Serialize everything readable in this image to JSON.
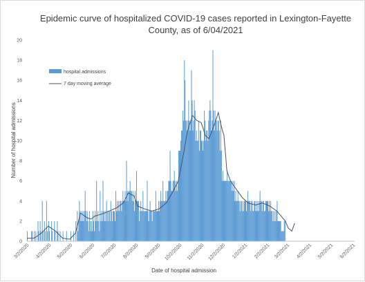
{
  "chart_data": {
    "type": "bar",
    "title_lines": [
      "Epidemic curve of hospitalized COVID-19 cases reported in Lexington-Fayette",
      "County, as of 6/04/2021"
    ],
    "xlabel": "Date of hospital admission",
    "ylabel": "Number of hospital admissions",
    "ylim": [
      0,
      20
    ],
    "yticks": [
      "0",
      "2",
      "4",
      "6",
      "8",
      "10",
      "12",
      "14",
      "16",
      "18",
      "20"
    ],
    "xlim": [
      "2020-03-02",
      "2021-06-04"
    ],
    "xticks": [
      {
        "date": "2020-03-02",
        "label": "3/2/2020"
      },
      {
        "date": "2020-04-02",
        "label": "4/2/2020"
      },
      {
        "date": "2020-05-02",
        "label": "5/2/2020"
      },
      {
        "date": "2020-06-02",
        "label": "6/2/2020"
      },
      {
        "date": "2020-07-02",
        "label": "7/2/2020"
      },
      {
        "date": "2020-08-02",
        "label": "8/2/2020"
      },
      {
        "date": "2020-09-02",
        "label": "9/2/2020"
      },
      {
        "date": "2020-10-02",
        "label": "10/2/2020"
      },
      {
        "date": "2020-11-02",
        "label": "11/2/2020"
      },
      {
        "date": "2020-12-02",
        "label": "12/2/2020"
      },
      {
        "date": "2021-01-02",
        "label": "1/2/2021"
      },
      {
        "date": "2021-02-02",
        "label": "2/2/2021"
      },
      {
        "date": "2021-03-02",
        "label": "3/2/2021"
      },
      {
        "date": "2021-04-02",
        "label": "4/2/2021"
      },
      {
        "date": "2021-05-02",
        "label": "5/2/2021"
      },
      {
        "date": "2021-06-02",
        "label": "6/2/2021"
      }
    ],
    "legend": {
      "position": "upper-left",
      "bar_label": "hospital admissions",
      "line_label": "7 day moving average"
    },
    "grid": false,
    "colors": {
      "bar": "#5b9bd5",
      "line": "#44546a"
    },
    "series": [
      {
        "name": "hospital admissions",
        "type": "bar",
        "start_date": "2020-03-02",
        "values": [
          1,
          0,
          0,
          0,
          0,
          0,
          1,
          1,
          0,
          0,
          1,
          0,
          1,
          0,
          0,
          2,
          1,
          0,
          2,
          1,
          0,
          4,
          1,
          0,
          2,
          1,
          0,
          4,
          1,
          0,
          2,
          1,
          0,
          0,
          2,
          1,
          0,
          0,
          2,
          1,
          0,
          0,
          2,
          1,
          0,
          0,
          1,
          0,
          0,
          0,
          1,
          0,
          0,
          0,
          0,
          1,
          0,
          0,
          0,
          0,
          0,
          1,
          0,
          0,
          0,
          1,
          0,
          0,
          2,
          0,
          3,
          1,
          2,
          4,
          3,
          2,
          3,
          2,
          3,
          2,
          3,
          5,
          3,
          2,
          3,
          2,
          1,
          3,
          2,
          1,
          2,
          1,
          3,
          2,
          1,
          3,
          2,
          6,
          2,
          3,
          2,
          1,
          5,
          2,
          3,
          2,
          6,
          3,
          2,
          3,
          2,
          4,
          3,
          2,
          3,
          3,
          2,
          4,
          3,
          2,
          3,
          3,
          3,
          2,
          5,
          3,
          4,
          3,
          4,
          3,
          4,
          4,
          3,
          4,
          5,
          4,
          4,
          5,
          4,
          8,
          5,
          4,
          5,
          5,
          6,
          5,
          5,
          4,
          5,
          4,
          3,
          5,
          4,
          7,
          4,
          4,
          4,
          2,
          3,
          4,
          3,
          3,
          5,
          3,
          3,
          3,
          3,
          3,
          6,
          3,
          2,
          3,
          4,
          3,
          3,
          2,
          3,
          3,
          3,
          3,
          5,
          3,
          3,
          3,
          4,
          3,
          4,
          5,
          4,
          4,
          6,
          4,
          4,
          4,
          5,
          4,
          5,
          5,
          6,
          6,
          9,
          6,
          5,
          5,
          6,
          6,
          7,
          6,
          5,
          6,
          5,
          6,
          9,
          9,
          9,
          10,
          11,
          11,
          13,
          12,
          18,
          16,
          12,
          12,
          11,
          12,
          14,
          12,
          11,
          12,
          17,
          14,
          11,
          12,
          14,
          13,
          10,
          11,
          10,
          10,
          12,
          9,
          11,
          11,
          10,
          10,
          9,
          10,
          13,
          12,
          10,
          11,
          11,
          10,
          12,
          13,
          14,
          13,
          11,
          12,
          19,
          13,
          11,
          13,
          12,
          12,
          11,
          12,
          12,
          11,
          9,
          12,
          9,
          6,
          7,
          6,
          6,
          6,
          6,
          6,
          7,
          6,
          6,
          6,
          6,
          6,
          6,
          5,
          6,
          5,
          6,
          4,
          5,
          4,
          4,
          5,
          4,
          4,
          3,
          4,
          4,
          3,
          4,
          3,
          4,
          4,
          4,
          3,
          4,
          5,
          4,
          4,
          4,
          3,
          4,
          4,
          3,
          3,
          4,
          4,
          3,
          4,
          3,
          4,
          3,
          4,
          5,
          4,
          4,
          3,
          4,
          4,
          3,
          3,
          4,
          4,
          4,
          4,
          3,
          4,
          3,
          4,
          3,
          3,
          2,
          3,
          2,
          3,
          2,
          3,
          4,
          2,
          2,
          2,
          2,
          2,
          1,
          1,
          1,
          1,
          2,
          2
        ]
      },
      {
        "name": "7 day moving average",
        "type": "line",
        "start_date": "2020-03-02",
        "points": [
          [
            0,
            0.3
          ],
          [
            10,
            0.3
          ],
          [
            20,
            0.8
          ],
          [
            30,
            1.5
          ],
          [
            40,
            1.0
          ],
          [
            50,
            0.3
          ],
          [
            60,
            0.2
          ],
          [
            68,
            0.8
          ],
          [
            75,
            2.8
          ],
          [
            85,
            2.3
          ],
          [
            90,
            2.2
          ],
          [
            95,
            2.5
          ],
          [
            105,
            2.7
          ],
          [
            115,
            3.0
          ],
          [
            125,
            3.3
          ],
          [
            135,
            3.8
          ],
          [
            142,
            4.8
          ],
          [
            150,
            4.5
          ],
          [
            155,
            3.5
          ],
          [
            165,
            3.2
          ],
          [
            175,
            3.0
          ],
          [
            185,
            3.2
          ],
          [
            195,
            3.8
          ],
          [
            205,
            5.0
          ],
          [
            212,
            6.0
          ],
          [
            218,
            8.2
          ],
          [
            225,
            11.0
          ],
          [
            232,
            12.5
          ],
          [
            238,
            12.0
          ],
          [
            244,
            11.8
          ],
          [
            250,
            10.5
          ],
          [
            255,
            10.2
          ],
          [
            262,
            11.5
          ],
          [
            268,
            12.8
          ],
          [
            272,
            11.5
          ],
          [
            276,
            10.5
          ],
          [
            280,
            7.0
          ],
          [
            285,
            6.0
          ],
          [
            290,
            5.5
          ],
          [
            295,
            5.0
          ],
          [
            302,
            4.3
          ],
          [
            310,
            3.8
          ],
          [
            320,
            3.6
          ],
          [
            330,
            3.8
          ],
          [
            340,
            3.5
          ],
          [
            350,
            3.0
          ],
          [
            356,
            2.5
          ],
          [
            362,
            2.0
          ],
          [
            366,
            1.3
          ],
          [
            371,
            1.0
          ],
          [
            375,
            1.8
          ]
        ]
      }
    ]
  }
}
